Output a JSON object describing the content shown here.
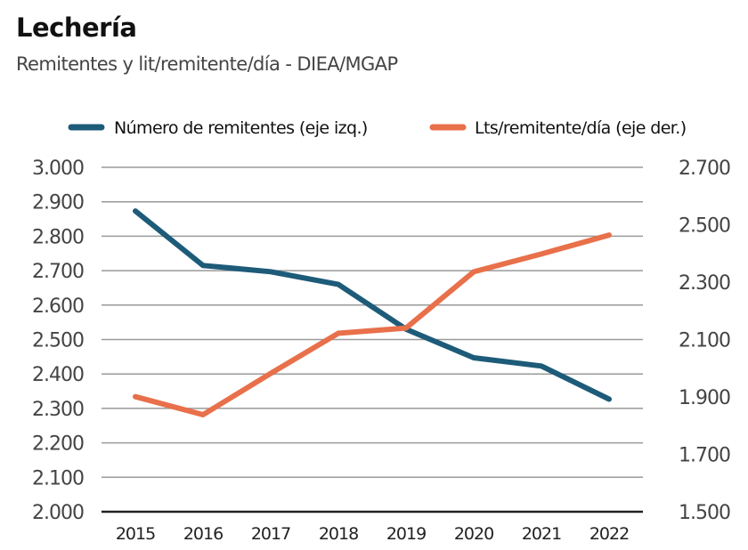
{
  "chart_data": {
    "type": "line",
    "title": "Lechería",
    "subtitle": "Remitentes y lit/remitente/día - DIEA/MGAP",
    "xlabel": "",
    "ylabel": "",
    "x": [
      "2015",
      "2016",
      "2017",
      "2018",
      "2019",
      "2020",
      "2021",
      "2022"
    ],
    "y_left": {
      "range": [
        2000,
        3000
      ],
      "ticks": [
        2000,
        2100,
        2200,
        2300,
        2400,
        2500,
        2600,
        2700,
        2800,
        2900,
        3000
      ],
      "tick_labels": [
        "2.000",
        "2.100",
        "2.200",
        "2.300",
        "2.400",
        "2.500",
        "2.600",
        "2.700",
        "2.800",
        "2.900",
        "3.000"
      ]
    },
    "y_right": {
      "range": [
        1500,
        2700
      ],
      "ticks": [
        1500,
        1700,
        1900,
        2100,
        2300,
        2500,
        2700
      ],
      "tick_labels": [
        "1.500",
        "1.700",
        "1.900",
        "2.100",
        "2.300",
        "2.500",
        "2.700"
      ]
    },
    "grid": true,
    "legend_position": "top",
    "series": [
      {
        "name": "Número de remitentes (eje izq.)",
        "axis": "left",
        "color": "#1d5b79",
        "values": [
          2873,
          2715,
          2697,
          2660,
          2530,
          2447,
          2423,
          2327
        ]
      },
      {
        "name": "Lts/remitente/día (eje der.)",
        "axis": "right",
        "color": "#e8704a",
        "values": [
          1901,
          1838,
          1982,
          2122,
          2140,
          2336,
          2398,
          2464
        ]
      }
    ]
  }
}
